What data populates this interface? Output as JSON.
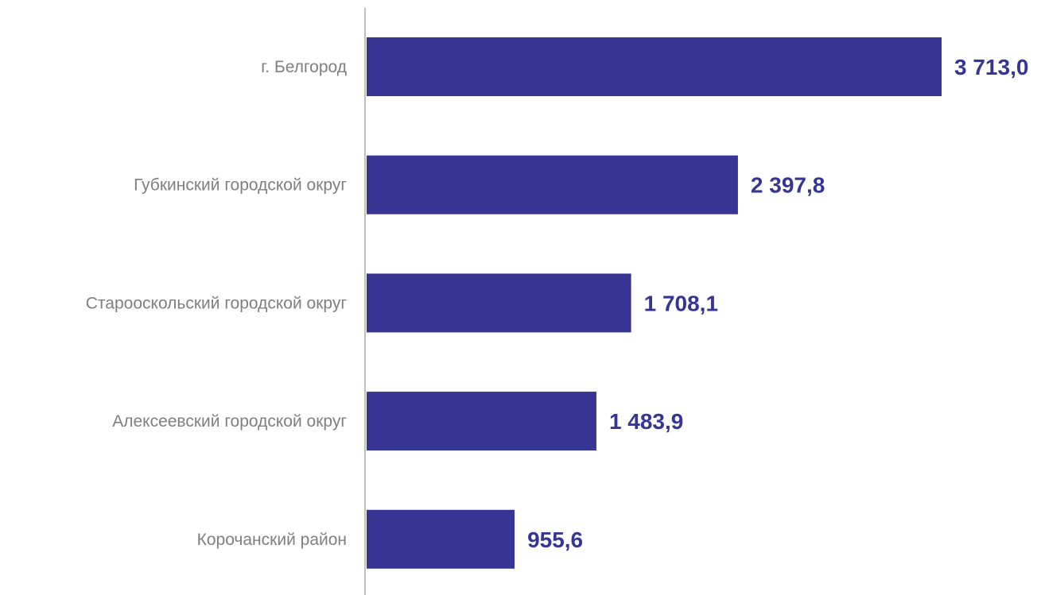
{
  "chart_data": {
    "type": "bar",
    "orientation": "horizontal",
    "categories": [
      "г. Белгород",
      "Губкинский городской округ",
      "Старооскольский городской округ",
      "Алексеевский городской округ",
      "Корочанский район"
    ],
    "values": [
      3713.0,
      2397.8,
      1708.1,
      1483.9,
      955.6
    ],
    "value_labels": [
      "3 713,0",
      "2 397,8",
      "1 708,1",
      "1 483,9",
      "955,6"
    ],
    "xlim": [
      0,
      3713.0
    ],
    "grid": false,
    "legend": "none",
    "colors": {
      "bar": "#373594",
      "value_label": "#373594",
      "category_label": "#7f7f7f",
      "axis_line": "#bfbfbf"
    }
  }
}
